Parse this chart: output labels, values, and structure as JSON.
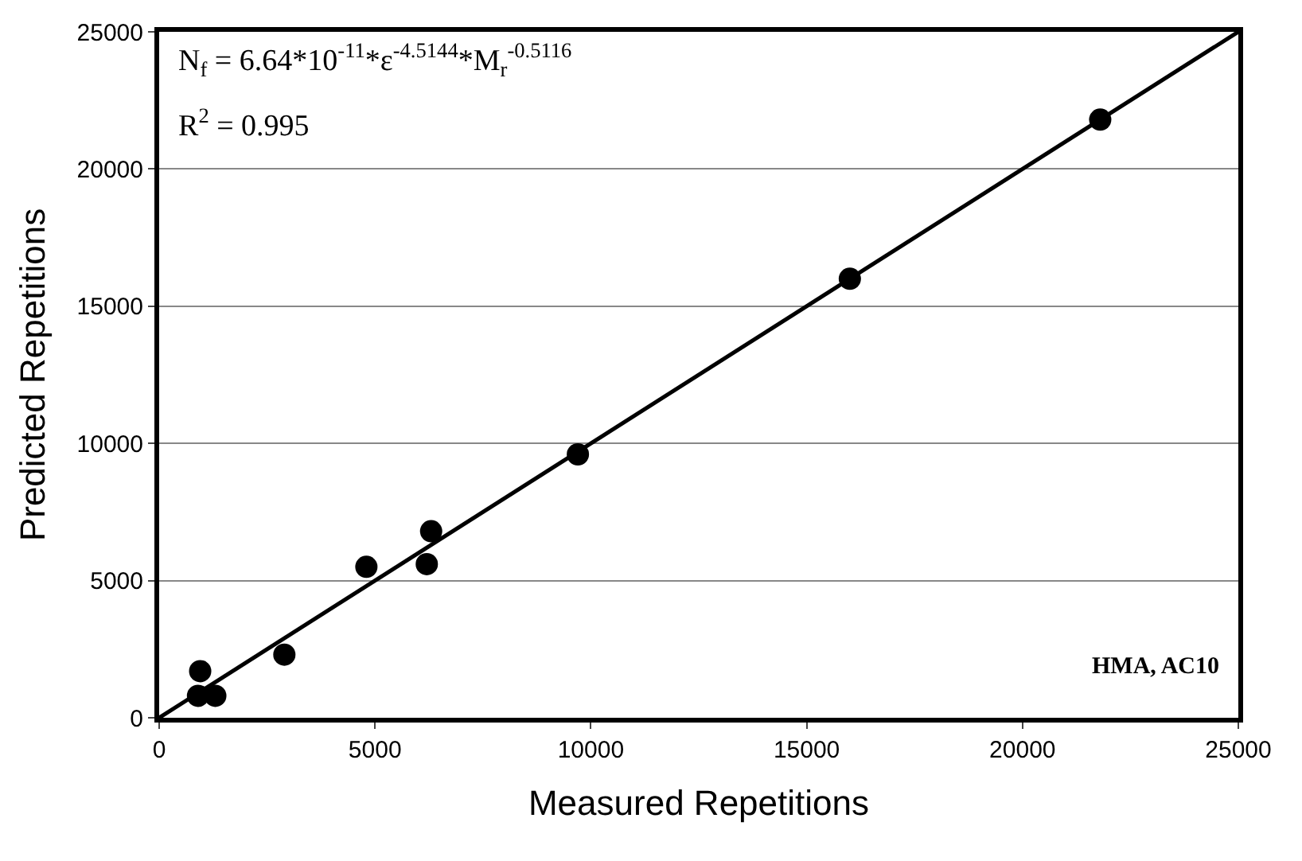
{
  "chart_data": {
    "type": "scatter",
    "xlabel": "Measured Repetitions",
    "ylabel": "Predicted Repetitions",
    "xlim": [
      0,
      25000
    ],
    "ylim": [
      0,
      25000
    ],
    "xticks": [
      0,
      5000,
      10000,
      15000,
      20000,
      25000
    ],
    "yticks": [
      0,
      5000,
      10000,
      15000,
      20000,
      25000
    ],
    "grid": "y",
    "marker": "circle",
    "series": [
      {
        "color": "#000000",
        "x": [
          950,
          900,
          1300,
          2900,
          4800,
          6200,
          6300,
          9700,
          16000,
          21800
        ],
        "values": [
          1700,
          800,
          800,
          2300,
          5500,
          5600,
          6800,
          9600,
          16000,
          21800
        ]
      },
      {
        "type": "line",
        "marker": "none",
        "color": "#000000",
        "x": [
          0,
          25000
        ],
        "values": [
          0,
          25000
        ]
      }
    ],
    "annotations": [
      "N$_{f}$ = 6.64*10$^{-11}$*ε$^{-4.5144}$*M$_{r}$$^{-0.5116}$",
      "R$^{2}$ = 0.995",
      "HMA, AC10"
    ]
  }
}
